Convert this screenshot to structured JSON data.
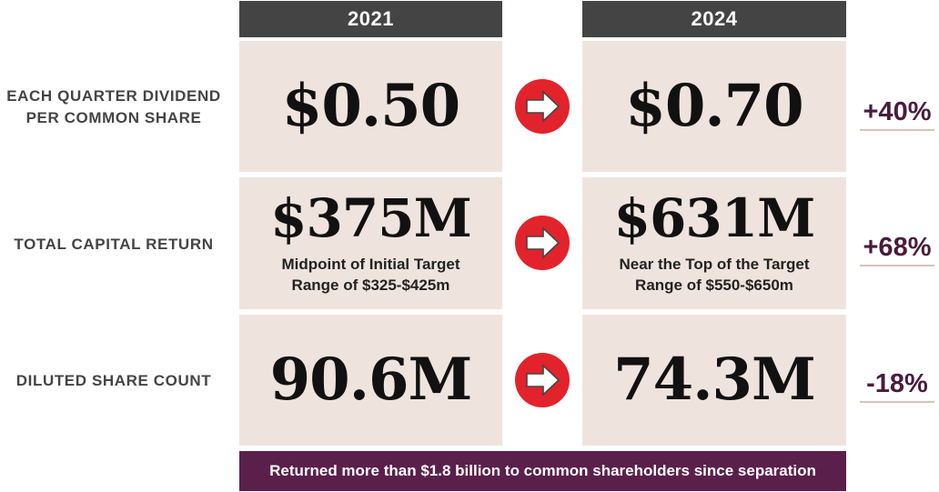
{
  "headers": {
    "year_start": "2021",
    "year_end": "2024"
  },
  "rows": [
    {
      "label_line1": "EACH QUARTER DIVIDEND",
      "label_line2": "PER COMMON SHARE",
      "value_2021": "$0.50",
      "value_2024": "$0.70",
      "change": "+40%"
    },
    {
      "label_line1": "TOTAL CAPITAL RETURN",
      "value_2021": "$375M",
      "note_2021_line1": "Midpoint of Initial Target",
      "note_2021_line2": "Range of $325-$425m",
      "value_2024": "$631M",
      "note_2024_line1": "Near the Top of the Target",
      "note_2024_line2": "Range of $550-$650m",
      "change": "+68%"
    },
    {
      "label_line1": "DILUTED SHARE COUNT",
      "value_2021": "90.6M",
      "value_2024": "74.3M",
      "change": "-18%"
    }
  ],
  "banner": {
    "text": "Returned more than $1.8 billion to common shareholders since separation"
  },
  "icons": {
    "arrow": "arrow-right-circle-icon"
  },
  "colors": {
    "header_bg": "#444444",
    "cell_bg": "#efe4dd",
    "arrow_red": "#e2232b",
    "percent_text": "#4a1b3d",
    "banner_bg": "#5b1f4b"
  }
}
